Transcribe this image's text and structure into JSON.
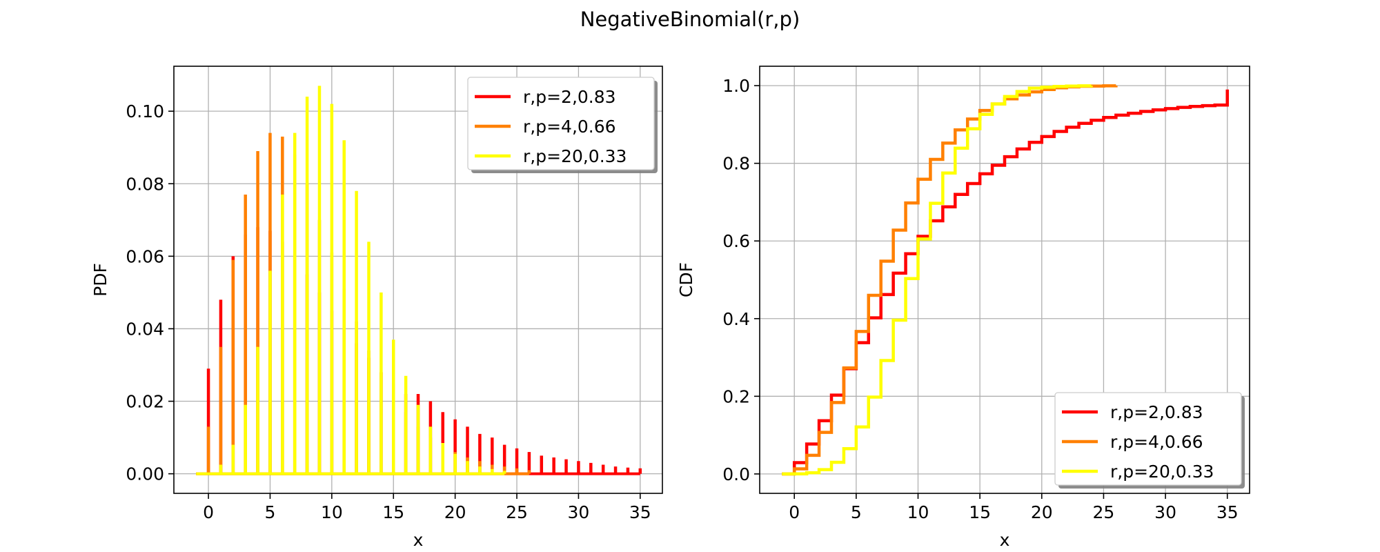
{
  "figure": {
    "title": "NegativeBinomial(r,p)"
  },
  "chart_data": [
    {
      "type": "bar",
      "subtype": "stem-pmf",
      "xlabel": "x",
      "ylabel": "PDF",
      "xlim": [
        -2.8,
        36.8
      ],
      "ylim": [
        -0.0054,
        0.1124
      ],
      "xticks": [
        0,
        5,
        10,
        15,
        20,
        25,
        30,
        35
      ],
      "xtick_labels": [
        "0",
        "5",
        "10",
        "15",
        "20",
        "25",
        "30",
        "35"
      ],
      "yticks": [
        0.0,
        0.02,
        0.04,
        0.06,
        0.08,
        0.1
      ],
      "ytick_labels": [
        "0.00",
        "0.02",
        "0.04",
        "0.06",
        "0.08",
        "0.10"
      ],
      "grid": true,
      "legend_position": "top-right",
      "series": [
        {
          "name": "r,p=2,0.83",
          "color": "#ff0000",
          "x_range": [
            -1,
            35
          ],
          "x": [
            0,
            1,
            2,
            3,
            4,
            5,
            6,
            7,
            8,
            9,
            10,
            11,
            12,
            13,
            14,
            15,
            16,
            17,
            18,
            19,
            20,
            21,
            22,
            23,
            24,
            25,
            26,
            27,
            28,
            29,
            30,
            31,
            32,
            33,
            34,
            35
          ],
          "values": [
            0.029,
            0.048,
            0.06,
            0.066,
            0.068,
            0.067,
            0.064,
            0.06,
            0.055,
            0.05,
            0.045,
            0.04,
            0.036,
            0.032,
            0.028,
            0.025,
            0.022,
            0.022,
            0.02,
            0.017,
            0.015,
            0.013,
            0.011,
            0.01,
            0.008,
            0.007,
            0.006,
            0.005,
            0.0045,
            0.004,
            0.0035,
            0.003,
            0.0025,
            0.002,
            0.0017,
            0.0015
          ]
        },
        {
          "name": "r,p=4,0.66",
          "color": "#ff8000",
          "x_range": [
            -1,
            26
          ],
          "x": [
            0,
            1,
            2,
            3,
            4,
            5,
            6,
            7,
            8,
            9,
            10,
            11,
            12,
            13,
            14,
            15,
            16,
            17,
            18,
            19,
            20,
            21,
            22,
            23,
            24,
            25,
            26
          ],
          "values": [
            0.013,
            0.035,
            0.059,
            0.077,
            0.089,
            0.094,
            0.093,
            0.088,
            0.08,
            0.07,
            0.061,
            0.051,
            0.042,
            0.034,
            0.028,
            0.022,
            0.017,
            0.013,
            0.01,
            0.008,
            0.006,
            0.0045,
            0.0035,
            0.0025,
            0.002,
            0.0015,
            0.001
          ]
        },
        {
          "name": "r,p=20,0.33",
          "color": "#ffff00",
          "x_range": [
            -1,
            24
          ],
          "x": [
            0,
            1,
            2,
            3,
            4,
            5,
            6,
            7,
            8,
            9,
            10,
            11,
            12,
            13,
            14,
            15,
            16,
            17,
            18,
            19,
            20,
            21,
            22,
            23,
            24
          ],
          "values": [
            0.0003,
            0.0025,
            0.008,
            0.019,
            0.035,
            0.056,
            0.077,
            0.094,
            0.104,
            0.107,
            0.102,
            0.092,
            0.078,
            0.064,
            0.05,
            0.037,
            0.027,
            0.019,
            0.013,
            0.0085,
            0.0055,
            0.0035,
            0.002,
            0.0013,
            0.0008
          ]
        }
      ]
    },
    {
      "type": "line",
      "subtype": "step-cdf",
      "xlabel": "x",
      "ylabel": "CDF",
      "xlim": [
        -2.8,
        36.8
      ],
      "ylim": [
        -0.05,
        1.05
      ],
      "xticks": [
        0,
        5,
        10,
        15,
        20,
        25,
        30,
        35
      ],
      "xtick_labels": [
        "0",
        "5",
        "10",
        "15",
        "20",
        "25",
        "30",
        "35"
      ],
      "yticks": [
        0.0,
        0.2,
        0.4,
        0.6,
        0.8,
        1.0
      ],
      "ytick_labels": [
        "0.0",
        "0.2",
        "0.4",
        "0.6",
        "0.8",
        "1.0"
      ],
      "grid": true,
      "legend_position": "bottom-right",
      "series": [
        {
          "name": "r,p=2,0.83",
          "color": "#ff0000",
          "x_range": [
            -1,
            35
          ],
          "x": [
            0,
            1,
            2,
            3,
            4,
            5,
            6,
            7,
            8,
            9,
            10,
            11,
            12,
            13,
            14,
            15,
            16,
            17,
            18,
            19,
            20,
            21,
            22,
            23,
            24,
            25,
            26,
            27,
            28,
            29,
            30,
            31,
            32,
            33,
            34,
            35
          ],
          "values": [
            0.029,
            0.077,
            0.137,
            0.203,
            0.271,
            0.338,
            0.402,
            0.462,
            0.517,
            0.567,
            0.612,
            0.652,
            0.688,
            0.72,
            0.748,
            0.773,
            0.795,
            0.817,
            0.837,
            0.854,
            0.869,
            0.882,
            0.893,
            0.903,
            0.911,
            0.918,
            0.924,
            0.929,
            0.9335,
            0.9375,
            0.941,
            0.944,
            0.9465,
            0.9485,
            0.95,
            0.99
          ]
        },
        {
          "name": "r,p=4,0.66",
          "color": "#ff8000",
          "x_range": [
            -1,
            26
          ],
          "x": [
            0,
            1,
            2,
            3,
            4,
            5,
            6,
            7,
            8,
            9,
            10,
            11,
            12,
            13,
            14,
            15,
            16,
            17,
            18,
            19,
            20,
            21,
            22,
            23,
            24,
            25,
            26
          ],
          "values": [
            0.013,
            0.048,
            0.107,
            0.184,
            0.273,
            0.367,
            0.46,
            0.548,
            0.628,
            0.698,
            0.759,
            0.81,
            0.852,
            0.886,
            0.914,
            0.936,
            0.953,
            0.966,
            0.976,
            0.984,
            0.99,
            0.9945,
            0.997,
            0.9985,
            0.999,
            0.9995,
            1.0
          ]
        },
        {
          "name": "r,p=20,0.33",
          "color": "#ffff00",
          "x_range": [
            -1,
            24
          ],
          "x": [
            0,
            1,
            2,
            3,
            4,
            5,
            6,
            7,
            8,
            9,
            10,
            11,
            12,
            13,
            14,
            15,
            16,
            17,
            18,
            19,
            20,
            21,
            22,
            23,
            24
          ],
          "values": [
            0.0003,
            0.003,
            0.011,
            0.03,
            0.065,
            0.121,
            0.198,
            0.292,
            0.396,
            0.503,
            0.605,
            0.697,
            0.775,
            0.839,
            0.889,
            0.926,
            0.953,
            0.972,
            0.985,
            0.9935,
            0.996,
            0.998,
            0.999,
            0.9995,
            1.0
          ]
        }
      ]
    }
  ]
}
